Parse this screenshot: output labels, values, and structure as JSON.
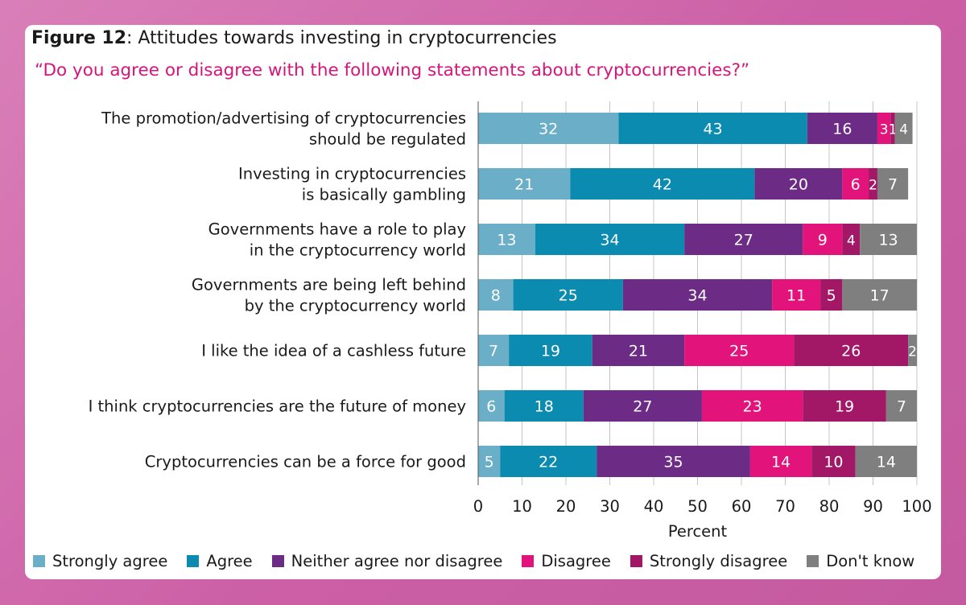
{
  "figure": {
    "label": "Figure 12",
    "title_rest": ": Attitudes towards investing in cryptocurrencies",
    "subtitle": "“Do you agree or disagree with the following statements about cryptocurrencies?”"
  },
  "chart_data": {
    "type": "bar",
    "orientation": "horizontal",
    "stacked": true,
    "title": "Attitudes towards investing in cryptocurrencies",
    "xlabel": "Percent",
    "ylabel": "",
    "xlim": [
      0,
      100
    ],
    "xticks": [
      0,
      10,
      20,
      30,
      40,
      50,
      60,
      70,
      80,
      90,
      100
    ],
    "grid": true,
    "legend_position": "bottom",
    "categories": [
      [
        "The promotion/advertising of cryptocurrencies",
        "should be regulated"
      ],
      [
        "Investing in cryptocurrencies",
        "is basically gambling"
      ],
      [
        "Governments have a role to play",
        "in the cryptocurrency world"
      ],
      [
        "Governments are being left behind",
        "by the cryptocurrency world"
      ],
      [
        "I like the idea of a cashless future"
      ],
      [
        "I think cryptocurrencies are the future of money"
      ],
      [
        "Cryptocurrencies can be a force for good"
      ]
    ],
    "series": [
      {
        "name": "Strongly agree",
        "color": "#6aaec8",
        "values": [
          32,
          21,
          13,
          8,
          7,
          6,
          5
        ]
      },
      {
        "name": "Agree",
        "color": "#0b8bb0",
        "values": [
          43,
          42,
          34,
          25,
          19,
          18,
          22
        ]
      },
      {
        "name": "Neither agree nor disagree",
        "color": "#6c2b84",
        "values": [
          16,
          20,
          27,
          34,
          21,
          27,
          35
        ]
      },
      {
        "name": "Disagree",
        "color": "#e2137a",
        "values": [
          3,
          6,
          9,
          11,
          25,
          23,
          14
        ]
      },
      {
        "name": "Strongly disagree",
        "color": "#a21866",
        "values": [
          1,
          2,
          4,
          5,
          26,
          19,
          10
        ]
      },
      {
        "name": "Don't know",
        "color": "#7f7f7f",
        "values": [
          4,
          7,
          13,
          17,
          2,
          7,
          14
        ]
      }
    ]
  }
}
